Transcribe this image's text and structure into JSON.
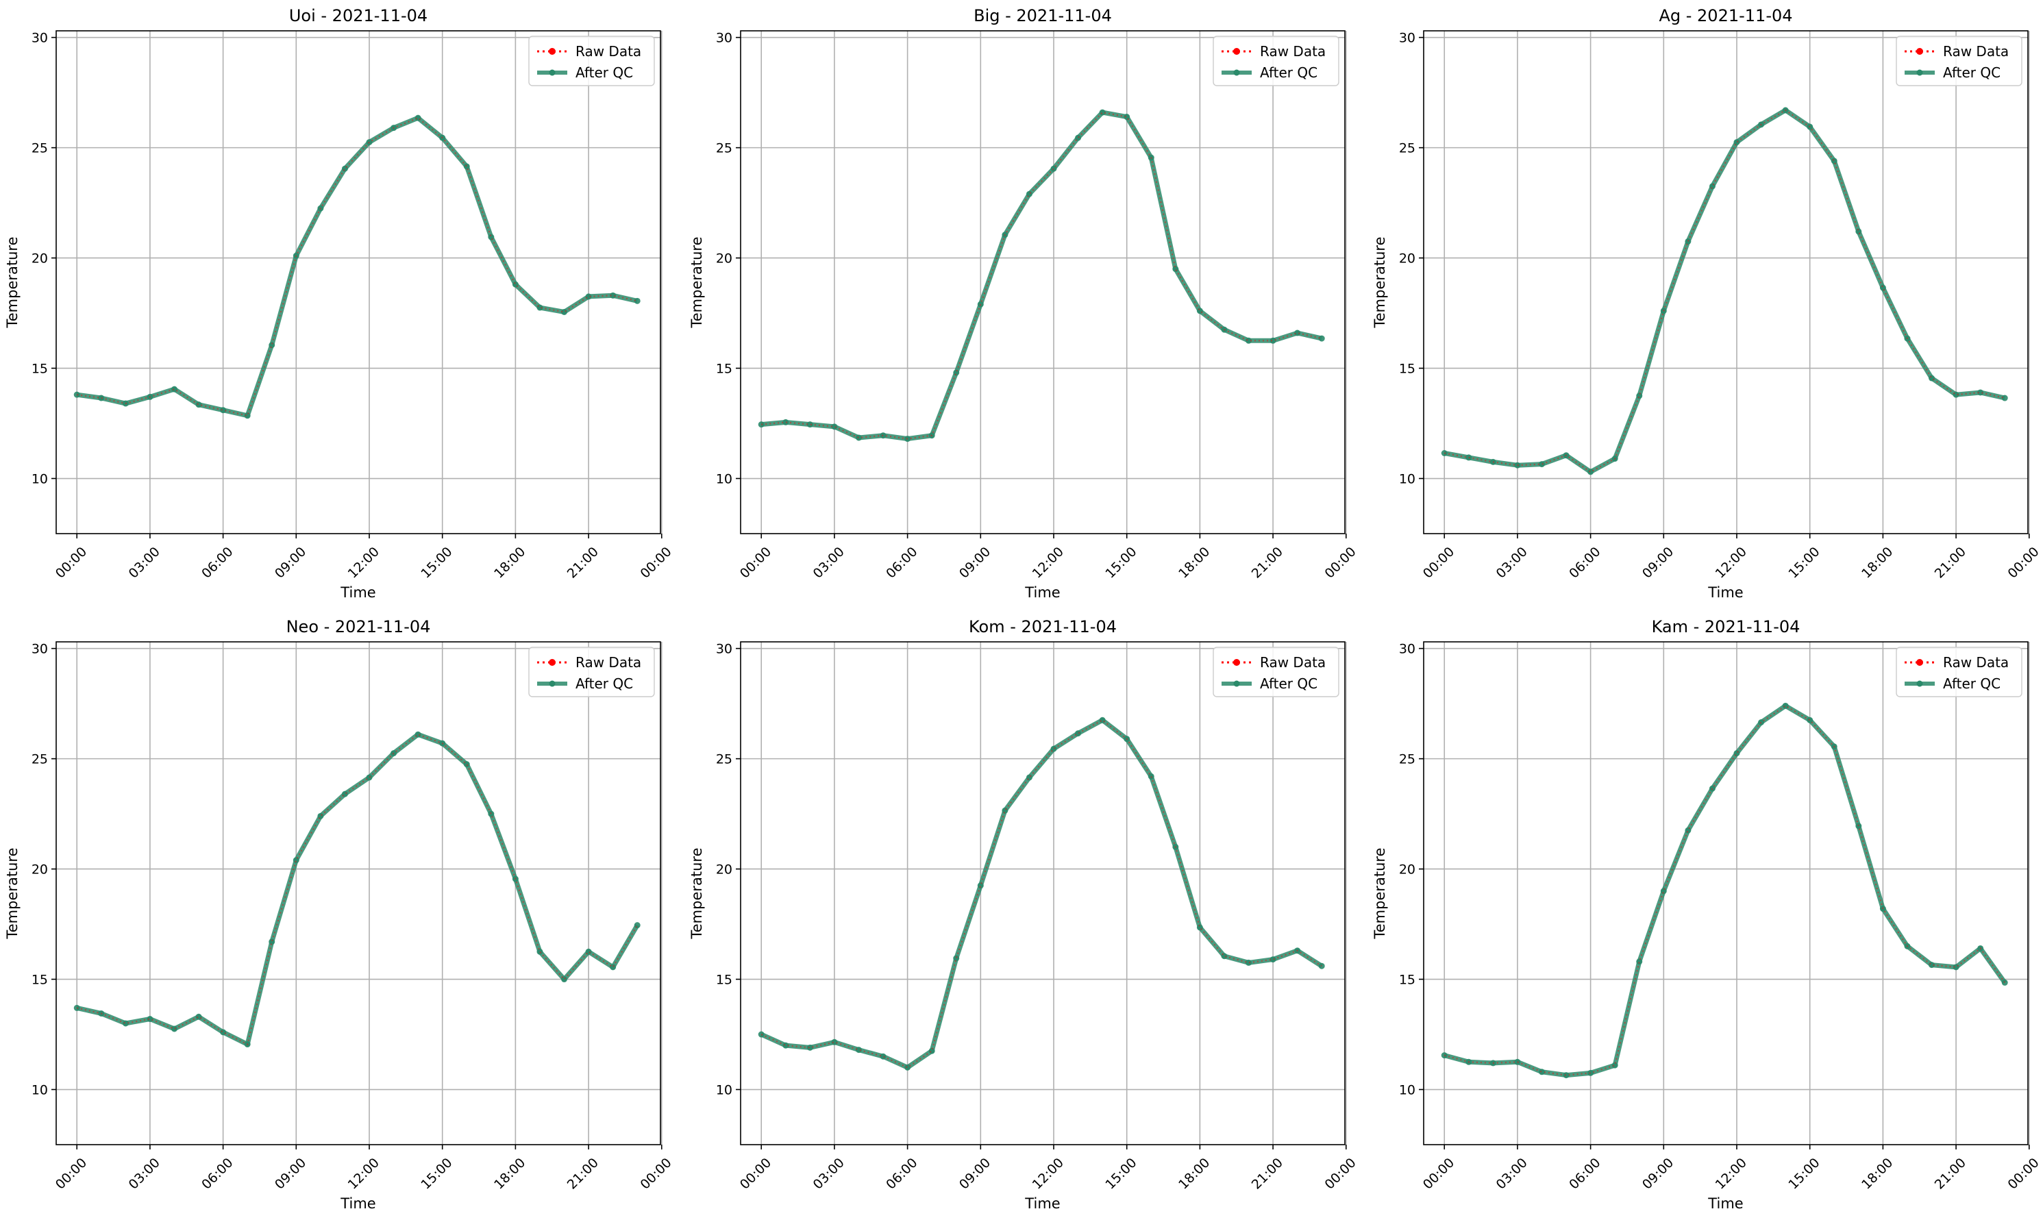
{
  "figure": {
    "background": "#ffffff"
  },
  "style": {
    "raw_color": "#ff0000",
    "qc_color": "#2a8a6a",
    "grid_color": "#b0b0b0"
  },
  "chart_data": [
    {
      "type": "line",
      "title": "Uoi - 2021-11-04",
      "xlabel": "Time",
      "ylabel": "Temperature",
      "ylim": [
        7.5,
        30.3
      ],
      "xlim": [
        -0.85,
        23.95
      ],
      "x_ticks": [
        "00:00",
        "03:00",
        "06:00",
        "09:00",
        "12:00",
        "15:00",
        "18:00",
        "21:00",
        "00:00"
      ],
      "y_ticks": [
        10,
        15,
        20,
        25,
        30
      ],
      "grid": true,
      "legend": "upper right",
      "legend_entries": [
        "Raw Data",
        "After QC"
      ],
      "x": [
        "00:00",
        "01:00",
        "02:00",
        "03:00",
        "04:00",
        "05:00",
        "06:00",
        "07:00",
        "08:00",
        "09:00",
        "10:00",
        "11:00",
        "12:00",
        "13:00",
        "14:00",
        "15:00",
        "16:00",
        "17:00",
        "18:00",
        "19:00",
        "20:00",
        "21:00",
        "22:00",
        "23:00"
      ],
      "series": [
        {
          "name": "Raw Data",
          "values": [
            13.8,
            13.65,
            13.4,
            13.7,
            14.05,
            13.35,
            13.1,
            12.85,
            16.05,
            20.1,
            22.25,
            24.05,
            25.25,
            25.9,
            26.35,
            25.45,
            24.15,
            20.95,
            18.8,
            17.75,
            17.55,
            18.25,
            18.3,
            18.05
          ]
        },
        {
          "name": "After QC",
          "values": [
            13.8,
            13.65,
            13.4,
            13.7,
            14.05,
            13.35,
            13.1,
            12.85,
            16.05,
            20.1,
            22.25,
            24.05,
            25.25,
            25.9,
            26.35,
            25.45,
            24.15,
            20.95,
            18.8,
            17.75,
            17.55,
            18.25,
            18.3,
            18.05
          ]
        }
      ]
    },
    {
      "type": "line",
      "title": "Big - 2021-11-04",
      "xlabel": "Time",
      "ylabel": "Temperature",
      "ylim": [
        7.5,
        30.3
      ],
      "xlim": [
        -0.85,
        23.95
      ],
      "x_ticks": [
        "00:00",
        "03:00",
        "06:00",
        "09:00",
        "12:00",
        "15:00",
        "18:00",
        "21:00",
        "00:00"
      ],
      "y_ticks": [
        10,
        15,
        20,
        25,
        30
      ],
      "grid": true,
      "legend": "upper right",
      "legend_entries": [
        "Raw Data",
        "After QC"
      ],
      "x": [
        "00:00",
        "01:00",
        "02:00",
        "03:00",
        "04:00",
        "05:00",
        "06:00",
        "07:00",
        "08:00",
        "09:00",
        "10:00",
        "11:00",
        "12:00",
        "13:00",
        "14:00",
        "15:00",
        "16:00",
        "17:00",
        "18:00",
        "19:00",
        "20:00",
        "21:00",
        "22:00",
        "23:00"
      ],
      "series": [
        {
          "name": "Raw Data",
          "values": [
            12.45,
            12.55,
            12.45,
            12.35,
            11.85,
            11.95,
            11.8,
            11.95,
            14.8,
            17.9,
            21.05,
            22.9,
            24.05,
            25.45,
            26.6,
            26.4,
            24.55,
            19.5,
            17.6,
            16.75,
            16.25,
            16.25,
            16.6,
            16.35
          ]
        },
        {
          "name": "After QC",
          "values": [
            12.45,
            12.55,
            12.45,
            12.35,
            11.85,
            11.95,
            11.8,
            11.95,
            14.8,
            17.9,
            21.05,
            22.9,
            24.05,
            25.45,
            26.6,
            26.4,
            24.55,
            19.5,
            17.6,
            16.75,
            16.25,
            16.25,
            16.6,
            16.35
          ]
        }
      ]
    },
    {
      "type": "line",
      "title": "Ag - 2021-11-04",
      "xlabel": "Time",
      "ylabel": "Temperature",
      "ylim": [
        7.5,
        30.3
      ],
      "xlim": [
        -0.85,
        23.95
      ],
      "x_ticks": [
        "00:00",
        "03:00",
        "06:00",
        "09:00",
        "12:00",
        "15:00",
        "18:00",
        "21:00",
        "00:00"
      ],
      "y_ticks": [
        10,
        15,
        20,
        25,
        30
      ],
      "grid": true,
      "legend": "upper right",
      "legend_entries": [
        "Raw Data",
        "After QC"
      ],
      "x": [
        "00:00",
        "01:00",
        "02:00",
        "03:00",
        "04:00",
        "05:00",
        "06:00",
        "07:00",
        "08:00",
        "09:00",
        "10:00",
        "11:00",
        "12:00",
        "13:00",
        "14:00",
        "15:00",
        "16:00",
        "17:00",
        "18:00",
        "19:00",
        "20:00",
        "21:00",
        "22:00",
        "23:00"
      ],
      "series": [
        {
          "name": "Raw Data",
          "values": [
            11.15,
            10.95,
            10.75,
            10.6,
            10.65,
            11.05,
            10.3,
            10.9,
            13.75,
            17.6,
            20.75,
            23.25,
            25.25,
            26.05,
            26.7,
            25.95,
            24.4,
            21.2,
            18.65,
            16.35,
            14.55,
            13.8,
            13.9,
            13.65
          ]
        },
        {
          "name": "After QC",
          "values": [
            11.15,
            10.95,
            10.75,
            10.6,
            10.65,
            11.05,
            10.3,
            10.9,
            13.75,
            17.6,
            20.75,
            23.25,
            25.25,
            26.05,
            26.7,
            25.95,
            24.4,
            21.2,
            18.65,
            16.35,
            14.55,
            13.8,
            13.9,
            13.65
          ]
        }
      ]
    },
    {
      "type": "line",
      "title": "Neo - 2021-11-04",
      "xlabel": "Time",
      "ylabel": "Temperature",
      "ylim": [
        7.5,
        30.3
      ],
      "xlim": [
        -0.85,
        23.95
      ],
      "x_ticks": [
        "00:00",
        "03:00",
        "06:00",
        "09:00",
        "12:00",
        "15:00",
        "18:00",
        "21:00",
        "00:00"
      ],
      "y_ticks": [
        10,
        15,
        20,
        25,
        30
      ],
      "grid": true,
      "legend": "upper right",
      "legend_entries": [
        "Raw Data",
        "After QC"
      ],
      "x": [
        "00:00",
        "01:00",
        "02:00",
        "03:00",
        "04:00",
        "05:00",
        "06:00",
        "07:00",
        "08:00",
        "09:00",
        "10:00",
        "11:00",
        "12:00",
        "13:00",
        "14:00",
        "15:00",
        "16:00",
        "17:00",
        "18:00",
        "19:00",
        "20:00",
        "21:00",
        "22:00",
        "23:00"
      ],
      "series": [
        {
          "name": "Raw Data",
          "values": [
            13.7,
            13.45,
            13.0,
            13.2,
            12.75,
            13.3,
            12.6,
            12.05,
            16.7,
            20.4,
            22.4,
            23.4,
            24.15,
            25.25,
            26.1,
            25.7,
            24.75,
            22.5,
            19.55,
            16.25,
            15.0,
            16.25,
            15.55,
            17.45
          ]
        },
        {
          "name": "After QC",
          "values": [
            13.7,
            13.45,
            13.0,
            13.2,
            12.75,
            13.3,
            12.6,
            12.05,
            16.7,
            20.4,
            22.4,
            23.4,
            24.15,
            25.25,
            26.1,
            25.7,
            24.75,
            22.5,
            19.55,
            16.25,
            15.0,
            16.25,
            15.55,
            17.45
          ]
        }
      ]
    },
    {
      "type": "line",
      "title": "Kom - 2021-11-04",
      "xlabel": "Time",
      "ylabel": "Temperature",
      "ylim": [
        7.5,
        30.3
      ],
      "xlim": [
        -0.85,
        23.95
      ],
      "x_ticks": [
        "00:00",
        "03:00",
        "06:00",
        "09:00",
        "12:00",
        "15:00",
        "18:00",
        "21:00",
        "00:00"
      ],
      "y_ticks": [
        10,
        15,
        20,
        25,
        30
      ],
      "grid": true,
      "legend": "upper right",
      "legend_entries": [
        "Raw Data",
        "After QC"
      ],
      "x": [
        "00:00",
        "01:00",
        "02:00",
        "03:00",
        "04:00",
        "05:00",
        "06:00",
        "07:00",
        "08:00",
        "09:00",
        "10:00",
        "11:00",
        "12:00",
        "13:00",
        "14:00",
        "15:00",
        "16:00",
        "17:00",
        "18:00",
        "19:00",
        "20:00",
        "21:00",
        "22:00",
        "23:00"
      ],
      "series": [
        {
          "name": "Raw Data",
          "values": [
            12.5,
            12.0,
            11.9,
            12.15,
            11.8,
            11.5,
            11.0,
            11.75,
            15.95,
            19.25,
            22.65,
            24.15,
            25.45,
            26.15,
            26.75,
            25.9,
            24.2,
            21.0,
            17.35,
            16.05,
            15.75,
            15.9,
            16.3,
            15.6
          ]
        },
        {
          "name": "After QC",
          "values": [
            12.5,
            12.0,
            11.9,
            12.15,
            11.8,
            11.5,
            11.0,
            11.75,
            15.95,
            19.25,
            22.65,
            24.15,
            25.45,
            26.15,
            26.75,
            25.9,
            24.2,
            21.0,
            17.35,
            16.05,
            15.75,
            15.9,
            16.3,
            15.6
          ]
        }
      ]
    },
    {
      "type": "line",
      "title": "Kam - 2021-11-04",
      "xlabel": "Time",
      "ylabel": "Temperature",
      "ylim": [
        7.5,
        30.3
      ],
      "xlim": [
        -0.85,
        23.95
      ],
      "x_ticks": [
        "00:00",
        "03:00",
        "06:00",
        "09:00",
        "12:00",
        "15:00",
        "18:00",
        "21:00",
        "00:00"
      ],
      "y_ticks": [
        10,
        15,
        20,
        25,
        30
      ],
      "grid": true,
      "legend": "upper right",
      "legend_entries": [
        "Raw Data",
        "After QC"
      ],
      "x": [
        "00:00",
        "01:00",
        "02:00",
        "03:00",
        "04:00",
        "05:00",
        "06:00",
        "07:00",
        "08:00",
        "09:00",
        "10:00",
        "11:00",
        "12:00",
        "13:00",
        "14:00",
        "15:00",
        "16:00",
        "17:00",
        "18:00",
        "19:00",
        "20:00",
        "21:00",
        "22:00",
        "23:00"
      ],
      "series": [
        {
          "name": "Raw Data",
          "values": [
            11.55,
            11.25,
            11.2,
            11.25,
            10.8,
            10.65,
            10.75,
            11.1,
            15.8,
            19.0,
            21.75,
            23.65,
            25.25,
            26.65,
            27.4,
            26.75,
            25.55,
            21.95,
            18.2,
            16.5,
            15.65,
            15.55,
            16.4,
            14.85
          ]
        },
        {
          "name": "After QC",
          "values": [
            11.55,
            11.25,
            11.2,
            11.25,
            10.8,
            10.65,
            10.75,
            11.1,
            15.8,
            19.0,
            21.75,
            23.65,
            25.25,
            26.65,
            27.4,
            26.75,
            25.55,
            21.95,
            18.2,
            16.5,
            15.65,
            15.55,
            16.4,
            14.85
          ]
        }
      ]
    }
  ]
}
